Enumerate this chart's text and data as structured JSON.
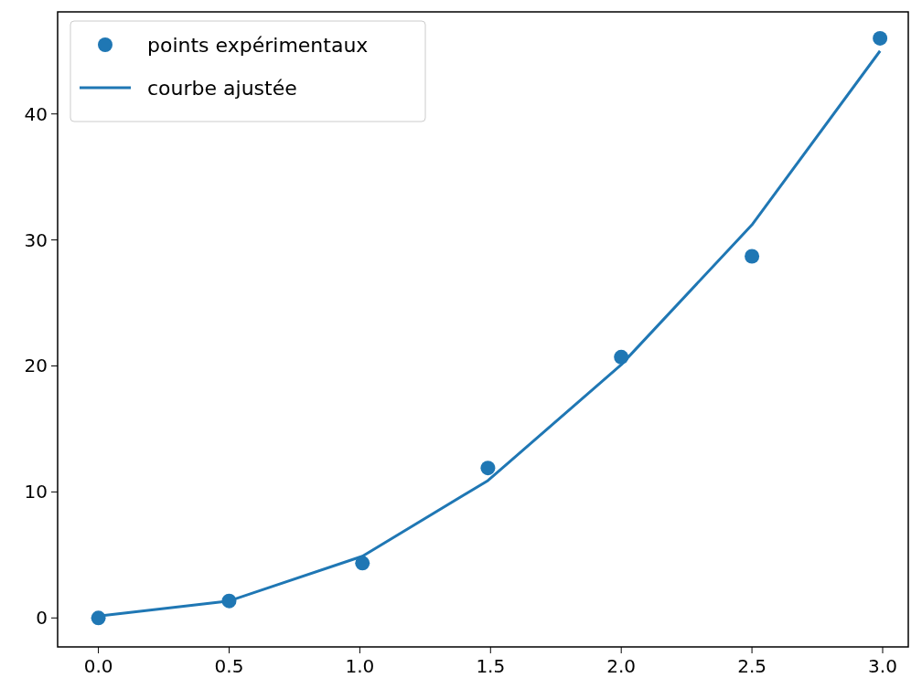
{
  "chart_data": {
    "type": "scatter",
    "xlim": [
      -0.156,
      3.098
    ],
    "ylim": [
      -2.3,
      48.1
    ],
    "xticks": [
      {
        "value": 0,
        "label": "0.0"
      },
      {
        "value": 0.5,
        "label": "0.5"
      },
      {
        "value": 1,
        "label": "1.0"
      },
      {
        "value": 1.5,
        "label": "1.5"
      },
      {
        "value": 2,
        "label": "2.0"
      },
      {
        "value": 2.5,
        "label": "2.5"
      },
      {
        "value": 3,
        "label": "3.0"
      }
    ],
    "yticks": [
      0,
      10,
      20,
      30,
      40
    ],
    "grid": false,
    "legend": "top left",
    "series": [
      {
        "name": "points expérimentaux",
        "marker": "circle",
        "color": "#1f77b4",
        "x": [
          0,
          0.5,
          1.01,
          1.49,
          2.0,
          2.5,
          2.99
        ],
        "values": [
          0.0,
          1.35,
          4.35,
          11.9,
          20.7,
          28.7,
          46.0
        ]
      },
      {
        "name": "courbe ajustée",
        "type": "line",
        "marker": "none",
        "line_style": "solid",
        "color": "#1f77b4",
        "x": [
          0,
          0.5,
          1.01,
          1.49,
          2.0,
          2.5,
          2.99
        ],
        "values": [
          0.15,
          1.35,
          4.9,
          10.9,
          20.1,
          31.2,
          45.0
        ]
      }
    ]
  }
}
